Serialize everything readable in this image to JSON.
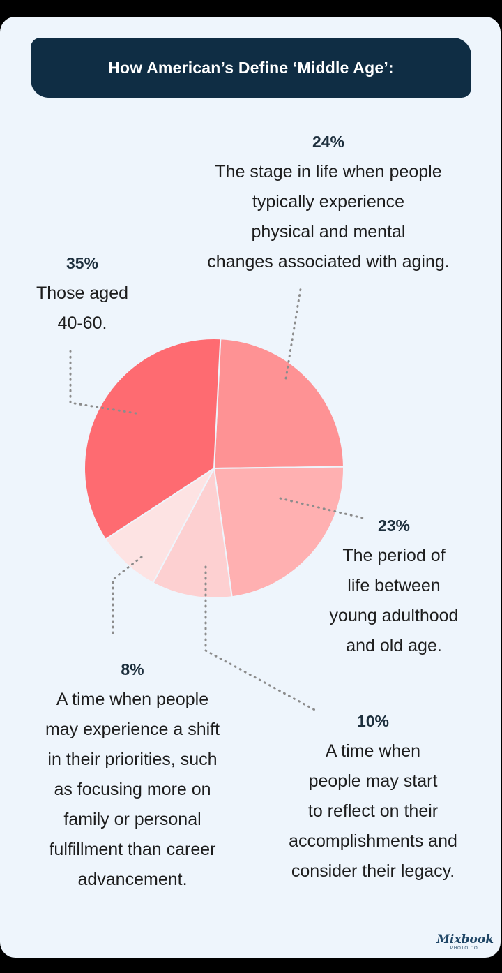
{
  "title": "How American’s Define ‘Middle Age’:",
  "chart_data": {
    "type": "pie",
    "title": "How American’s Define ‘Middle Age’:",
    "slices": [
      {
        "label_pct": "24%",
        "value": 24,
        "description": [
          "The stage in life when people",
          "typically experience",
          "physical and mental",
          "changes associated with aging."
        ],
        "color": "#fe9294"
      },
      {
        "label_pct": "23%",
        "value": 23,
        "description": [
          "The period of",
          "life between",
          "young adulthood",
          "and old age."
        ],
        "color": "#ffb0b1"
      },
      {
        "label_pct": "10%",
        "value": 10,
        "description": [
          "A time when",
          "people may start",
          "to reflect on their",
          "accomplishments and",
          "consider their legacy."
        ],
        "color": "#fdd0d1"
      },
      {
        "label_pct": "8%",
        "value": 8,
        "description": [
          "A time when people",
          "may experience a shift",
          "in their priorities, such",
          "as focusing more on",
          "family or personal",
          "fulfillment than career",
          "advancement."
        ],
        "color": "#fde3e3"
      },
      {
        "label_pct": "35%",
        "value": 35,
        "description": [
          "Those aged",
          "40-60."
        ],
        "color": "#fe6b71"
      }
    ]
  },
  "brand": {
    "name": "Mixbook",
    "tagline": "PHOTO CO."
  }
}
